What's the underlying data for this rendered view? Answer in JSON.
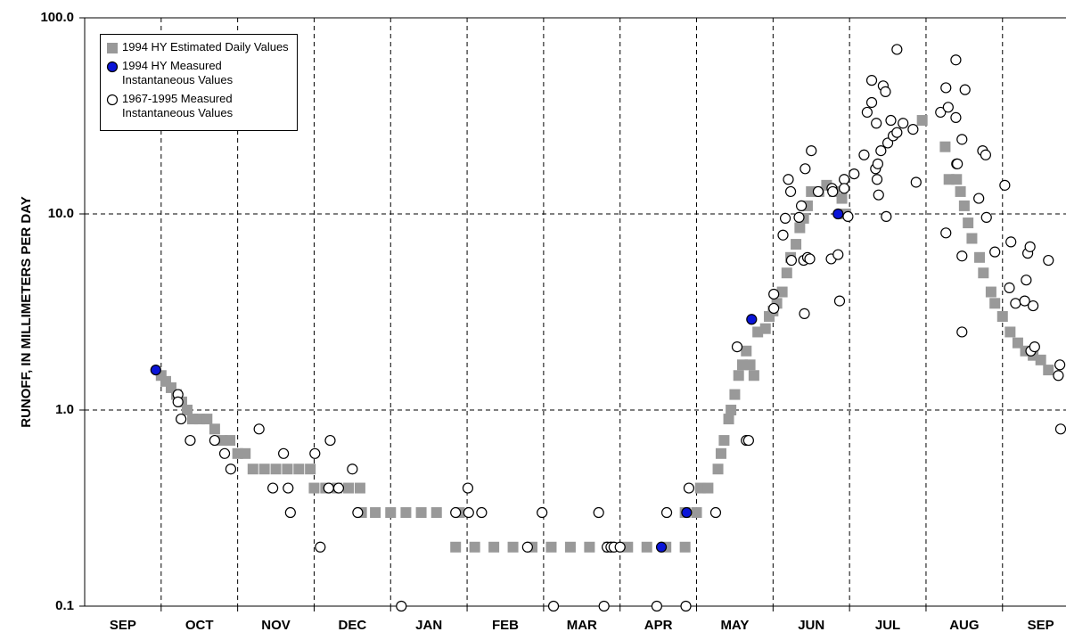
{
  "chart_data": {
    "type": "scatter",
    "ylabel": "RUNOFF, IN MILLIMETERS PER DAY",
    "categories": [
      "SEP",
      "OCT",
      "NOV",
      "DEC",
      "JAN",
      "FEB",
      "MAR",
      "APR",
      "MAY",
      "JUN",
      "JUL",
      "AUG",
      "SEP"
    ],
    "xlim": [
      0,
      12.83
    ],
    "xticks": [
      1,
      2,
      3,
      4,
      5,
      6,
      7,
      8,
      9,
      10,
      11,
      12
    ],
    "ylim": [
      0.1,
      100
    ],
    "yticks": [
      0.1,
      {
        "value": 1,
        "label": "1.0"
      },
      {
        "value": 10,
        "label": "10.0"
      },
      {
        "value": 100,
        "label": "100.0"
      }
    ],
    "log_y": true,
    "grid": true,
    "legend": "upper left",
    "series": [
      {
        "name": "1994 HY Estimated Daily Values",
        "color": "#999999",
        "marker": "square",
        "x": [
          1.0,
          1.06,
          1.13,
          1.2,
          1.27,
          1.34,
          1.41,
          1.5,
          1.6,
          1.7,
          1.8,
          1.9,
          2.0,
          2.1,
          2.2,
          2.35,
          2.5,
          2.65,
          2.8,
          2.95,
          3.0,
          3.15,
          3.3,
          3.45,
          3.6,
          3.62,
          3.8,
          4.0,
          4.2,
          4.4,
          4.6,
          4.9,
          4.85,
          5.1,
          5.35,
          5.6,
          5.85,
          6.1,
          6.35,
          6.6,
          6.85,
          7.1,
          7.35,
          7.6,
          7.85,
          7.85,
          8.0,
          8.05,
          8.15,
          8.28,
          8.32,
          8.36,
          8.42,
          8.45,
          8.5,
          8.55,
          8.6,
          8.65,
          8.7,
          8.75,
          8.8,
          8.9,
          8.95,
          9.0,
          9.05,
          9.12,
          9.18,
          9.23,
          9.3,
          9.35,
          9.4,
          9.45,
          9.5,
          9.6,
          9.7,
          9.8,
          9.9,
          9.95,
          10.95,
          11.25,
          11.3,
          11.4,
          11.45,
          11.5,
          11.55,
          11.6,
          11.7,
          11.75,
          11.85,
          11.9,
          12.0,
          12.1,
          12.2,
          12.3,
          12.4,
          12.5,
          12.6
        ],
        "values": [
          1.5,
          1.4,
          1.3,
          1.2,
          1.1,
          1.0,
          0.9,
          0.9,
          0.9,
          0.8,
          0.7,
          0.7,
          0.6,
          0.6,
          0.5,
          0.5,
          0.5,
          0.5,
          0.5,
          0.5,
          0.4,
          0.4,
          0.4,
          0.4,
          0.4,
          0.3,
          0.3,
          0.3,
          0.3,
          0.3,
          0.3,
          0.3,
          0.2,
          0.2,
          0.2,
          0.2,
          0.2,
          0.2,
          0.2,
          0.2,
          0.2,
          0.2,
          0.2,
          0.2,
          0.2,
          0.3,
          0.3,
          0.4,
          0.4,
          0.5,
          0.6,
          0.7,
          0.9,
          1.0,
          1.2,
          1.5,
          1.7,
          2.0,
          1.7,
          1.5,
          2.5,
          2.6,
          3.0,
          3.2,
          3.5,
          4.0,
          5.0,
          6.0,
          7.0,
          8.5,
          9.5,
          11,
          13,
          13,
          14,
          13,
          12,
          10,
          30,
          22,
          15,
          15,
          13,
          11,
          9,
          7.5,
          6,
          5,
          4,
          3.5,
          3,
          2.5,
          2.2,
          2.0,
          1.9,
          1.8,
          1.6
        ]
      },
      {
        "name": "1994 HY Measured Instantaneous Values",
        "color": "#0a14d8",
        "marker": "circle",
        "x": [
          0.93,
          7.54,
          7.87,
          8.72,
          9.85
        ],
        "values": [
          1.6,
          0.2,
          0.3,
          2.9,
          10
        ]
      },
      {
        "name": "1967-1995 Measured Instantaneous Values",
        "color": "#ffffff",
        "marker": "circle",
        "x": [
          1.22,
          1.22,
          1.26,
          1.38,
          1.7,
          1.83,
          1.91,
          2.28,
          2.46,
          2.6,
          2.66,
          2.69,
          3.01,
          3.08,
          3.19,
          3.21,
          3.32,
          3.5,
          3.57,
          4.14,
          4.85,
          5.01,
          5.02,
          5.19,
          5.79,
          5.98,
          6.13,
          6.72,
          6.79,
          6.83,
          6.88,
          6.92,
          7.0,
          7.48,
          7.61,
          7.86,
          7.9,
          8.25,
          8.53,
          8.65,
          8.68,
          9.01,
          9.01,
          9.13,
          9.16,
          9.2,
          9.23,
          9.24,
          9.34,
          9.37,
          9.4,
          9.41,
          9.42,
          9.45,
          9.48,
          9.5,
          9.59,
          9.76,
          9.77,
          9.78,
          9.85,
          9.87,
          9.93,
          9.93,
          9.98,
          10.06,
          10.19,
          10.23,
          10.29,
          10.29,
          10.34,
          10.35,
          10.36,
          10.37,
          10.38,
          10.41,
          10.44,
          10.47,
          10.48,
          10.5,
          10.54,
          10.57,
          10.62,
          10.62,
          10.7,
          10.83,
          10.87,
          11.19,
          11.26,
          11.26,
          11.29,
          11.39,
          11.39,
          11.4,
          11.41,
          11.47,
          11.47,
          11.47,
          11.51,
          11.69,
          11.74,
          11.78,
          11.79,
          11.9,
          12.03,
          12.09,
          12.11,
          12.17,
          12.29,
          12.31,
          12.33,
          12.36,
          12.4,
          12.37,
          12.42,
          12.6,
          12.73,
          12.75,
          12.76
        ],
        "values": [
          1.2,
          1.1,
          0.9,
          0.7,
          0.7,
          0.6,
          0.5,
          0.8,
          0.4,
          0.6,
          0.4,
          0.3,
          0.6,
          0.2,
          0.4,
          0.7,
          0.4,
          0.5,
          0.3,
          0.1,
          0.3,
          0.4,
          0.3,
          0.3,
          0.2,
          0.3,
          0.1,
          0.3,
          0.1,
          0.2,
          0.2,
          0.2,
          0.2,
          0.1,
          0.3,
          0.1,
          0.4,
          0.3,
          2.1,
          0.7,
          0.7,
          3.3,
          3.9,
          7.8,
          9.5,
          15,
          13,
          5.8,
          9.6,
          11,
          5.8,
          3.1,
          17,
          6,
          5.9,
          21,
          13,
          5.9,
          13.5,
          13,
          6.2,
          3.6,
          15,
          13.5,
          9.7,
          16,
          20,
          33,
          48,
          37,
          17,
          29,
          15,
          18,
          12.5,
          21,
          45,
          42,
          9.7,
          23,
          30,
          25,
          69,
          26,
          29,
          27,
          14.5,
          33,
          44,
          8,
          35,
          61,
          31,
          18,
          18,
          24,
          6.1,
          2.5,
          43,
          12,
          21,
          20,
          9.6,
          6.4,
          14,
          4.2,
          7.2,
          3.5,
          3.6,
          4.6,
          6.3,
          6.8,
          3.4,
          2.0,
          2.1,
          5.8,
          1.5,
          1.7,
          0.8
        ]
      }
    ]
  }
}
